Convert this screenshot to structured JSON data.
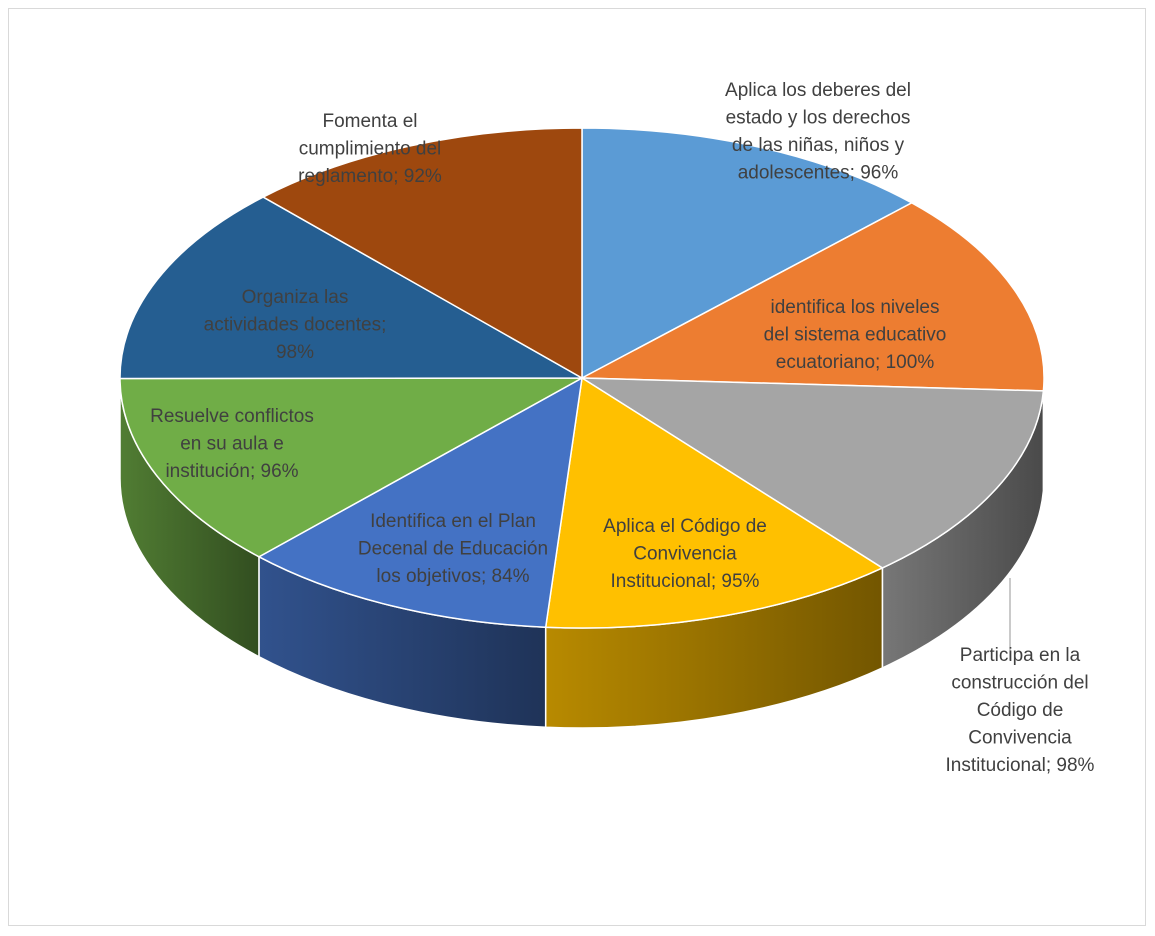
{
  "chart_data": {
    "type": "pie",
    "title": "",
    "style": "3d",
    "slices": [
      {
        "label": "Aplica los deberes del estado y los derechos de las niñas, niños y adolescentes",
        "value": 96,
        "display": "96%",
        "color": "#5b9bd5",
        "text_lines": [
          "Aplica los deberes del",
          "estado y los derechos",
          "de las niñas, niños y",
          "adolescentes; 96%"
        ]
      },
      {
        "label": "identifica los niveles del sistema educativo ecuatoriano",
        "value": 100,
        "display": "100%",
        "color": "#ed7d31",
        "text_lines": [
          "identifica los niveles",
          "del sistema educativo",
          "ecuatoriano; 100%"
        ]
      },
      {
        "label": "Participa en la construcción del Código de Convivencia Institucional",
        "value": 98,
        "display": "98%",
        "color": "#a5a5a5",
        "text_lines": [
          "Participa en la",
          "construcción del",
          "Código de",
          "Convivencia",
          "Institucional; 98%"
        ]
      },
      {
        "label": "Aplica el  Código de Convivencia Institucional",
        "value": 95,
        "display": "95%",
        "color": "#ffc000",
        "text_lines": [
          "Aplica el  Código de",
          "Convivencia",
          "Institucional; 95%"
        ]
      },
      {
        "label": "Identifica en el Plan Decenal de Educación los objetivos",
        "value": 84,
        "display": "84%",
        "color": "#4472c4",
        "text_lines": [
          "Identifica en el Plan",
          "Decenal de Educación",
          "los objetivos; 84%"
        ]
      },
      {
        "label": "Resuelve conflictos en su aula e institución",
        "value": 96,
        "display": "96%",
        "color": "#70ad47",
        "text_lines": [
          "Resuelve conflictos",
          "en su aula e",
          "institución; 96%"
        ]
      },
      {
        "label": "Organiza las actividades docentes",
        "value": 98,
        "display": "98%",
        "color": "#255e91",
        "text_lines": [
          "Organiza las",
          "actividades docentes;",
          "98%"
        ]
      },
      {
        "label": "Fomenta el cumplimiento del reglamento",
        "value": 92,
        "display": "92%",
        "color": "#9e480e",
        "text_lines": [
          "Fomenta el",
          "cumplimiento del",
          "reglamento; 92%"
        ]
      }
    ]
  }
}
